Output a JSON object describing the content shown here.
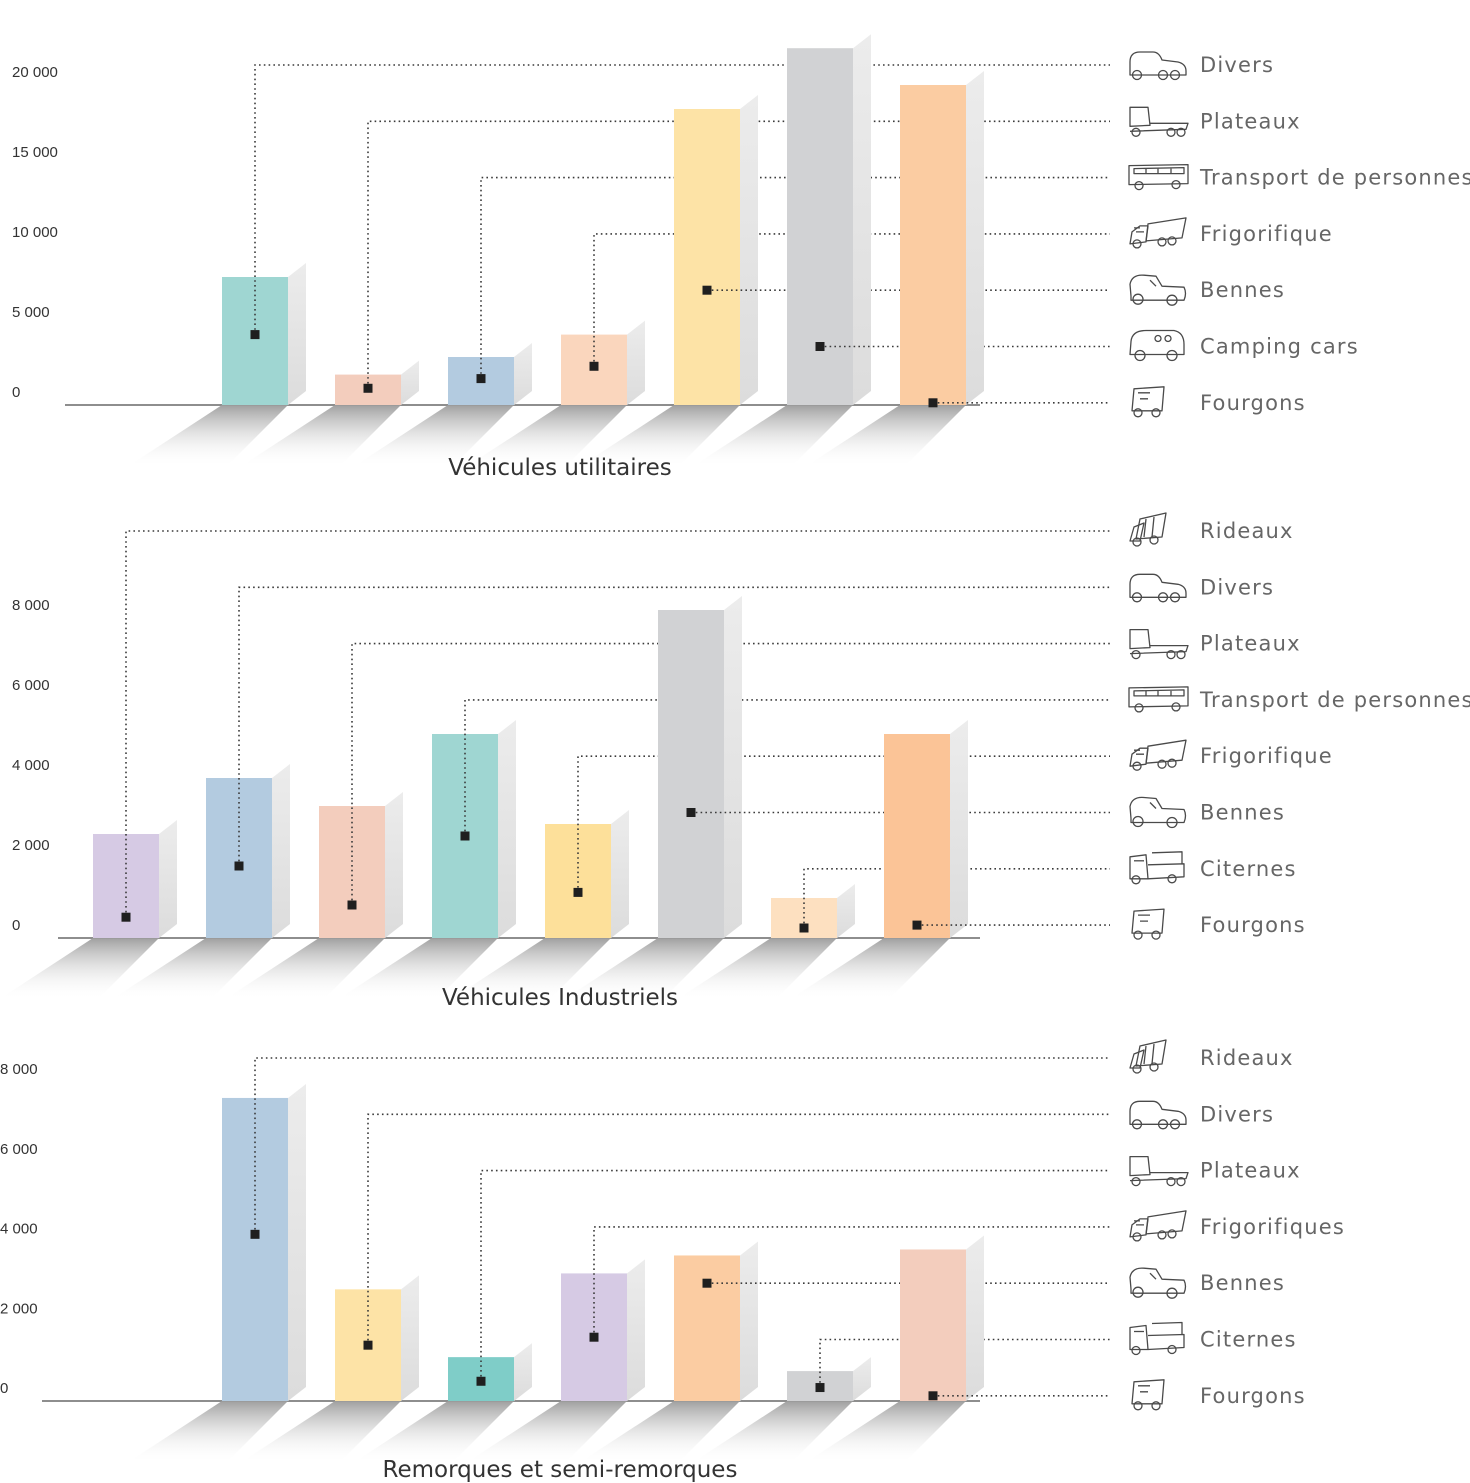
{
  "chart_data": [
    {
      "type": "bar",
      "title": "Véhicules utilitaires",
      "yticks": [
        "0",
        "5 000",
        "10 000",
        "15 000",
        "20 000"
      ],
      "ylim": [
        0,
        20000
      ],
      "legend_position": "right",
      "legend": [
        {
          "label": "Divers",
          "icon": "car-icon"
        },
        {
          "label": "Plateaux",
          "icon": "flatbed-truck-icon"
        },
        {
          "label": "Transport de personnes",
          "icon": "bus-icon"
        },
        {
          "label": "Frigorifique",
          "icon": "refrigerated-truck-icon"
        },
        {
          "label": "Bennes",
          "icon": "pickup-truck-icon"
        },
        {
          "label": "Camping cars",
          "icon": "camper-icon"
        },
        {
          "label": "Fourgons",
          "icon": "van-icon"
        }
      ],
      "bars": [
        {
          "series": "Divers",
          "value": 8000,
          "color": "#9fd6d2"
        },
        {
          "series": "Plateaux",
          "value": 1900,
          "color": "#f3cdbd"
        },
        {
          "series": "Transport de personnes",
          "value": 3000,
          "color": "#b3cbe0"
        },
        {
          "series": "Frigorifique",
          "value": 4400,
          "color": "#fad6bd"
        },
        {
          "series": "Bennes",
          "value": 18500,
          "color": "#fde3a6"
        },
        {
          "series": "Camping cars",
          "value": 22300,
          "color": "#d1d2d4"
        },
        {
          "series": "Fourgons",
          "value": 20000,
          "color": "#fbcca2"
        }
      ]
    },
    {
      "type": "bar",
      "title": "Véhicules Industriels",
      "yticks": [
        "0",
        "2 000",
        "4 000",
        "6 000",
        "8 000"
      ],
      "ylim": [
        0,
        8000
      ],
      "legend_position": "right",
      "legend": [
        {
          "label": "Rideaux",
          "icon": "curtain-truck-icon"
        },
        {
          "label": "Divers",
          "icon": "car-icon"
        },
        {
          "label": "Plateaux",
          "icon": "flatbed-truck-icon"
        },
        {
          "label": "Transport de personnes",
          "icon": "bus-icon"
        },
        {
          "label": "Frigorifique",
          "icon": "refrigerated-truck-icon"
        },
        {
          "label": "Bennes",
          "icon": "pickup-truck-icon"
        },
        {
          "label": "Citernes",
          "icon": "tanker-truck-icon"
        },
        {
          "label": "Fourgons",
          "icon": "van-icon"
        }
      ],
      "bars": [
        {
          "series": "Rideaux",
          "value": 2600,
          "color": "#d6cae4"
        },
        {
          "series": "Divers",
          "value": 4000,
          "color": "#b3cbe0"
        },
        {
          "series": "Plateaux",
          "value": 3300,
          "color": "#f3cdbd"
        },
        {
          "series": "Transport de personnes",
          "value": 5100,
          "color": "#9fd6d2"
        },
        {
          "series": "Frigorifique",
          "value": 2850,
          "color": "#fde09a"
        },
        {
          "series": "Bennes",
          "value": 8200,
          "color": "#d1d2d4"
        },
        {
          "series": "Citernes",
          "value": 1000,
          "color": "#fde0c0"
        },
        {
          "series": "Fourgons",
          "value": 5100,
          "color": "#fbc497"
        }
      ]
    },
    {
      "type": "bar",
      "title": "Remorques et semi-remorques",
      "yticks": [
        "0",
        "2 000",
        "4 000",
        "6 000",
        "8 000"
      ],
      "ylim": [
        0,
        8000
      ],
      "legend_position": "right",
      "legend": [
        {
          "label": "Rideaux",
          "icon": "curtain-truck-icon"
        },
        {
          "label": "Divers",
          "icon": "car-icon"
        },
        {
          "label": "Plateaux",
          "icon": "flatbed-truck-icon"
        },
        {
          "label": "Frigorifiques",
          "icon": "refrigerated-truck-icon"
        },
        {
          "label": "Bennes",
          "icon": "pickup-truck-icon"
        },
        {
          "label": "Citernes",
          "icon": "tanker-truck-icon"
        },
        {
          "label": "Fourgons",
          "icon": "van-icon"
        }
      ],
      "bars": [
        {
          "series": "Rideaux",
          "value": 7600,
          "color": "#b3cbe0"
        },
        {
          "series": "Divers",
          "value": 2800,
          "color": "#fde3a6"
        },
        {
          "series": "Plateaux",
          "value": 1100,
          "color": "#7fcdc8"
        },
        {
          "series": "Frigorifiques",
          "value": 3200,
          "color": "#d6cae4"
        },
        {
          "series": "Bennes",
          "value": 3650,
          "color": "#fbcca2"
        },
        {
          "series": "Citernes",
          "value": 750,
          "color": "#d1d2d4"
        },
        {
          "series": "Fourgons",
          "value": 3800,
          "color": "#f3cdbd"
        }
      ]
    }
  ]
}
